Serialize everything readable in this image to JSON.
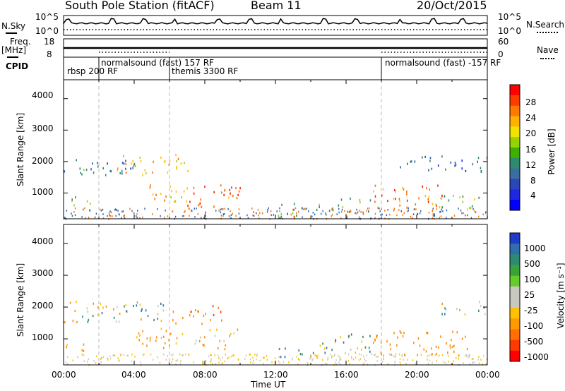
{
  "header": {
    "station": "South Pole Station (fitACF)",
    "beam": "Beam 11",
    "date": "20/Oct/2015"
  },
  "top_panels": {
    "nsky_label": "N.Sky",
    "nsky_ticks": [
      "10^5",
      "10^0"
    ],
    "nsearch_label": "N.Search",
    "nsearch_ticks": [
      "10^5",
      "10^0"
    ],
    "freq_label": "Freq.",
    "freq_unit": "[MHz]",
    "freq_ticks": [
      "18",
      "8"
    ],
    "nave_label": "Nave",
    "nave_ticks": [
      "60",
      "0"
    ],
    "cpid_label": "CPID",
    "cpid_segments": [
      {
        "label": "rbsp 200 RF",
        "start_h": 0,
        "end_h": 2
      },
      {
        "label": "normalsound (fast) 157 RF",
        "start_h": 2,
        "end_h": 6
      },
      {
        "label": "themis 3300 RF",
        "start_h": 6,
        "end_h": 18
      },
      {
        "label": "normalsound (fast) -157 RF",
        "start_h": 18,
        "end_h": 24
      }
    ]
  },
  "power_colorbar": {
    "title": "Power [dB]",
    "ticks": [
      "28",
      "24",
      "20",
      "16",
      "12",
      "8",
      "4"
    ],
    "colors": [
      "#ff0000",
      "#ff3c00",
      "#ff7a00",
      "#ffb000",
      "#f2e200",
      "#95d400",
      "#3fb000",
      "#2e8b6f",
      "#3a6ea0",
      "#2a46b8",
      "#1e28e0",
      "#0000ff"
    ]
  },
  "velocity_colorbar": {
    "title": "Velocity [m s⁻¹]",
    "ticks": [
      "1000",
      "500",
      "100",
      "25",
      "-25",
      "-100",
      "-500",
      "-1000"
    ],
    "colors": [
      "#1e3cc8",
      "#2f6ea8",
      "#2e8b6f",
      "#3aa23a",
      "#66cc2a",
      "#c8c8c0",
      "#c8c8c0",
      "#ffc000",
      "#ff9a00",
      "#ff7000",
      "#ff3a00",
      "#ff0000"
    ]
  },
  "x_axis": {
    "title": "Time UT",
    "ticks": [
      "00:00",
      "04:00",
      "08:00",
      "12:00",
      "16:00",
      "20:00",
      "00:00"
    ]
  },
  "power_panel": {
    "ylabel": "Slant Range [km]",
    "yticks": [
      "4000",
      "3000",
      "2000",
      "1000"
    ]
  },
  "velocity_panel": {
    "ylabel": "Slant Range [km]",
    "yticks": [
      "4000",
      "3000",
      "2000",
      "1000"
    ]
  },
  "chart_data": {
    "type": "heatmap",
    "title": "South Pole Station (fitACF) Beam 11 20/Oct/2015",
    "xlabel": "Time UT",
    "ylabel": "Slant Range [km]",
    "xlim_hours": [
      0,
      24
    ],
    "ylim_km": [
      180,
      4600
    ],
    "grid": false,
    "frequency_mhz": 12,
    "power_regions": [
      {
        "t0": 0.0,
        "t1": 4.0,
        "r0": 1550,
        "r1": 2150,
        "db": 12
      },
      {
        "t0": 3.0,
        "t1": 7.2,
        "r0": 1600,
        "r1": 2250,
        "db": 22
      },
      {
        "t0": 0.0,
        "t1": 1.8,
        "r0": 620,
        "r1": 900,
        "db": 16
      },
      {
        "t0": 4.0,
        "t1": 7.0,
        "r0": 750,
        "r1": 1300,
        "db": 22
      },
      {
        "t0": 7.0,
        "t1": 10.0,
        "r0": 550,
        "r1": 1350,
        "db": 28
      },
      {
        "t0": 12.0,
        "t1": 14.5,
        "r0": 300,
        "r1": 750,
        "db": 14
      },
      {
        "t0": 15.0,
        "t1": 17.5,
        "r0": 400,
        "r1": 900,
        "db": 18
      },
      {
        "t0": 17.5,
        "t1": 21.5,
        "r0": 450,
        "r1": 1300,
        "db": 26
      },
      {
        "t0": 21.0,
        "t1": 23.5,
        "r0": 500,
        "r1": 1000,
        "db": 18
      },
      {
        "t0": 19.0,
        "t1": 24.0,
        "r0": 1700,
        "r1": 2200,
        "db": 10
      }
    ],
    "velocity_regions": [
      {
        "t0": 0.0,
        "t1": 6.0,
        "r0": 1550,
        "r1": 2250,
        "v": 0
      },
      {
        "t0": 0.0,
        "t1": 1.5,
        "r0": 600,
        "r1": 900,
        "v": -200
      },
      {
        "t0": 4.0,
        "t1": 10.0,
        "r0": 700,
        "r1": 1350,
        "v": -150
      },
      {
        "t0": 6.0,
        "t1": 9.0,
        "r0": 1500,
        "r1": 2100,
        "v": -400
      },
      {
        "t0": 12.0,
        "t1": 14.5,
        "r0": 300,
        "r1": 750,
        "v": 80
      },
      {
        "t0": 14.5,
        "t1": 17.5,
        "r0": 400,
        "r1": 1200,
        "v": 60
      },
      {
        "t0": 17.5,
        "t1": 23.0,
        "r0": 500,
        "r1": 1300,
        "v": -250
      },
      {
        "t0": 21.0,
        "t1": 24.0,
        "r0": 1800,
        "r1": 2200,
        "v": 0
      }
    ]
  }
}
